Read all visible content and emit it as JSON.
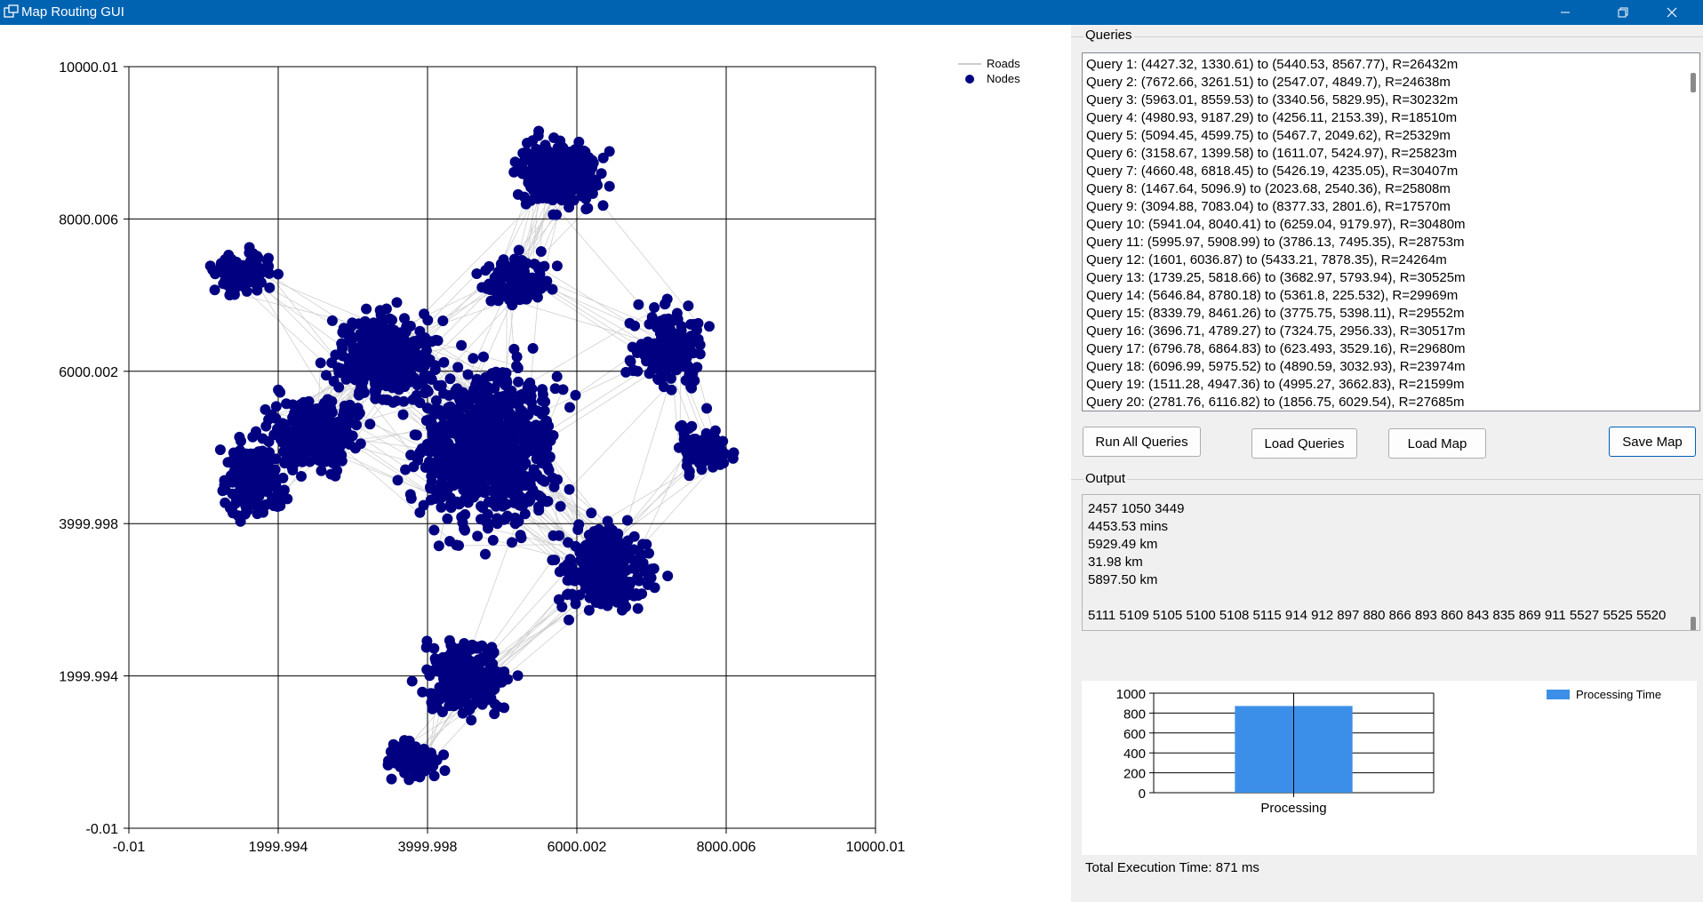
{
  "window": {
    "title": "Map Routing GUI",
    "title_bar_color": "#0063b1"
  },
  "map_plot": {
    "node_color": "#000080",
    "road_color": "#d0d0d0",
    "legend": [
      "Roads",
      "Nodes"
    ],
    "x_ticks": [
      "-0.01",
      "1999.994",
      "3999.998",
      "6000.002",
      "8000.006",
      "10000.01"
    ],
    "y_ticks": [
      "10000.01",
      "8000.006",
      "6000.002",
      "3999.998",
      "1999.994",
      "-0.01"
    ],
    "x_range": [
      -0.01,
      10000.01
    ],
    "y_range": [
      -0.01,
      10000.01
    ]
  },
  "queries_panel": {
    "label": "Queries",
    "items": [
      "Query 1: (4427.32, 1330.61) to (5440.53, 8567.77), R=26432m",
      "Query 2: (7672.66, 3261.51) to (2547.07, 4849.7), R=24638m",
      "Query 3: (5963.01, 8559.53) to (3340.56, 5829.95), R=30232m",
      "Query 4: (4980.93, 9187.29) to (4256.11, 2153.39), R=18510m",
      "Query 5: (5094.45, 4599.75) to (5467.7, 2049.62), R=25329m",
      "Query 6: (3158.67, 1399.58) to (1611.07, 5424.97), R=25823m",
      "Query 7: (4660.48, 6818.45) to (5426.19, 4235.05), R=30407m",
      "Query 8: (1467.64, 5096.9) to (2023.68, 2540.36), R=25808m",
      "Query 9: (3094.88, 7083.04) to (8377.33, 2801.6), R=17570m",
      "Query 10: (5941.04, 8040.41) to (6259.04, 9179.97), R=30480m",
      "Query 11: (5995.97, 5908.99) to (3786.13, 7495.35), R=28753m",
      "Query 12: (1601, 6036.87) to (5433.21, 7878.35), R=24264m",
      "Query 13: (1739.25, 5818.66) to (3682.97, 5793.94), R=30525m",
      "Query 14: (5646.84, 8780.18) to (5361.8, 225.532), R=29969m",
      "Query 15: (8339.79, 8461.26) to (3775.75, 5398.11), R=29552m",
      "Query 16: (3696.71, 4789.27) to (7324.75, 2956.33), R=30517m",
      "Query 17: (6796.78, 6864.83) to (623.493, 3529.16), R=29680m",
      "Query 18: (6096.99, 5975.52) to (4890.59, 3032.93), R=23974m",
      "Query 19: (1511.28, 4947.36) to (4995.27, 3662.83), R=21599m",
      "Query 20: (2781.76, 6116.82) to (1856.75, 6029.54), R=27685m"
    ]
  },
  "buttons": {
    "run_all": "Run All Queries",
    "load_queries": "Load Queries",
    "load_map": "Load Map",
    "save_map": "Save Map"
  },
  "output_panel": {
    "label": "Output",
    "text": "2457 1050 3449\n4453.53 mins\n5929.49 km\n31.98 km\n5897.50 km\n\n5111 5109 5105 5100 5108 5115 914 912 897 880 866 893 860 843 835 869 911 5527 5525 5520"
  },
  "chart_data": {
    "type": "bar",
    "categories": [
      "Processing"
    ],
    "series": [
      {
        "name": "Processing Time",
        "values": [
          871
        ],
        "color": "#3c8fe8"
      }
    ],
    "y_ticks": [
      "1000",
      "800",
      "600",
      "400",
      "200",
      "0"
    ],
    "ylim": [
      0,
      1000
    ]
  },
  "execution": {
    "total_time_label": "Total Execution Time: 871 ms"
  }
}
